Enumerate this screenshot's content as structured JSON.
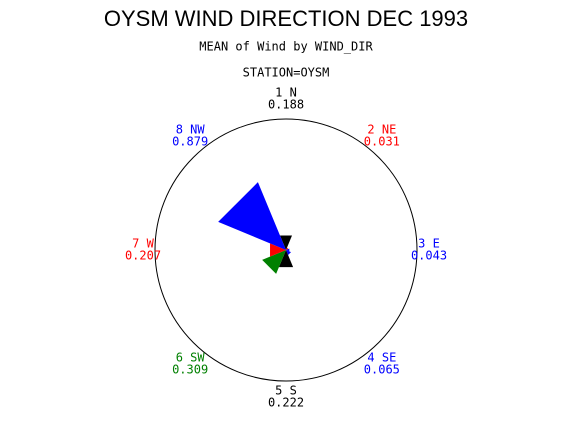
{
  "chart_data": {
    "type": "star",
    "title": "OYSM WIND DIRECTION DEC 1993",
    "subtitle": "MEAN of Wind by WIND_DIR",
    "station": "STATION=OYSM",
    "categories": [
      "1 N",
      "2 NE",
      "3 E",
      "4 SE",
      "5 S",
      "6 SW",
      "7 W",
      "8 NW"
    ],
    "values": [
      0.188,
      0.031,
      0.043,
      0.065,
      0.222,
      0.309,
      0.207,
      0.879
    ],
    "colors": [
      "#000000",
      "#ff0000",
      "#0000ff",
      "#0000ff",
      "#000000",
      "#008000",
      "#ff0000",
      "#0000ff"
    ],
    "rlim": [
      0,
      1.7
    ]
  }
}
